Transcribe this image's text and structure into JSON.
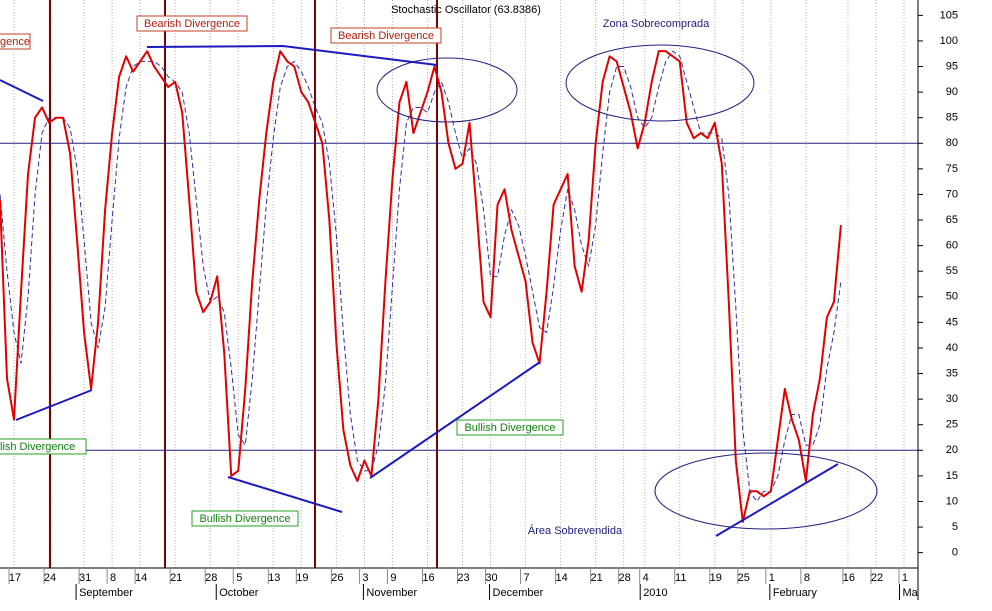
{
  "chart_data": {
    "type": "line",
    "title": "Stochastic Oscillator (63.8386)",
    "xlim": [
      0,
      131
    ],
    "ylim": [
      -3,
      108
    ],
    "yticks": [
      0,
      5,
      10,
      15,
      20,
      25,
      30,
      35,
      40,
      45,
      50,
      55,
      60,
      65,
      70,
      75,
      80,
      85,
      90,
      95,
      100,
      105
    ],
    "xticks": [
      {
        "value": 2,
        "label": "17"
      },
      {
        "value": 7,
        "label": "24"
      },
      {
        "value": 12,
        "label": "31"
      },
      {
        "value": 16,
        "label": "8"
      },
      {
        "value": 20,
        "label": "14"
      },
      {
        "value": 25,
        "label": "21"
      },
      {
        "value": 30,
        "label": "28"
      },
      {
        "value": 34,
        "label": "5"
      },
      {
        "value": 39,
        "label": "13"
      },
      {
        "value": 43,
        "label": "19"
      },
      {
        "value": 48,
        "label": "26"
      },
      {
        "value": 52,
        "label": "3"
      },
      {
        "value": 56,
        "label": "9"
      },
      {
        "value": 61,
        "label": "16"
      },
      {
        "value": 66,
        "label": "23"
      },
      {
        "value": 70,
        "label": "30"
      },
      {
        "value": 75,
        "label": "7"
      },
      {
        "value": 80,
        "label": "14"
      },
      {
        "value": 85,
        "label": "21"
      },
      {
        "value": 89,
        "label": "28"
      },
      {
        "value": 92,
        "label": "4"
      },
      {
        "value": 97,
        "label": "11"
      },
      {
        "value": 102,
        "label": "19"
      },
      {
        "value": 106,
        "label": "25"
      },
      {
        "value": 110,
        "label": "1"
      },
      {
        "value": 115,
        "label": "8"
      },
      {
        "value": 121,
        "label": "16"
      },
      {
        "value": 125,
        "label": "22"
      },
      {
        "value": 129,
        "label": "1"
      }
    ],
    "month_ticks": [
      {
        "value": 11,
        "label": "September"
      },
      {
        "value": 31,
        "label": "October"
      },
      {
        "value": 52,
        "label": "November"
      },
      {
        "value": 70,
        "label": "December"
      },
      {
        "value": 91.5,
        "label": "2010"
      },
      {
        "value": 110,
        "label": "February"
      },
      {
        "value": 128.5,
        "label": "Ma"
      }
    ],
    "grid": true,
    "levels": [
      80,
      20
    ],
    "series": [
      {
        "color": "#e00000",
        "dash": false,
        "values": [
          69,
          34,
          26,
          51,
          74,
          85,
          87,
          84,
          85,
          85,
          78,
          61,
          43,
          32,
          45,
          67,
          82,
          93,
          97,
          94,
          96,
          98,
          95,
          93,
          91,
          92,
          86,
          69,
          51,
          47,
          49,
          54,
          39,
          15,
          16,
          32,
          53,
          69,
          82,
          92,
          98,
          96,
          95,
          90,
          88,
          84,
          80,
          65,
          41,
          24,
          17,
          14,
          18,
          15,
          30,
          53,
          73,
          88,
          92,
          82,
          86,
          90,
          95,
          90,
          80,
          75,
          76,
          84,
          67,
          49,
          46,
          68,
          71,
          63,
          58,
          53,
          41,
          37,
          51,
          68,
          71,
          74,
          56,
          51,
          61,
          80,
          92,
          97,
          96,
          91,
          86,
          79,
          84,
          92,
          98,
          98,
          97,
          96,
          84,
          81,
          82,
          81,
          84,
          76,
          49,
          18,
          6,
          12,
          12,
          11,
          12,
          22,
          32,
          26,
          22,
          14,
          27,
          34,
          46,
          49,
          64
        ]
      },
      {
        "color": "#3030a0",
        "dash": true,
        "values": [
          70,
          55,
          43,
          37,
          50,
          70,
          82,
          85,
          85,
          85,
          83,
          75,
          61,
          45,
          40,
          48,
          65,
          81,
          91,
          95,
          96,
          96,
          96,
          95,
          93,
          92,
          90,
          82,
          69,
          56,
          49,
          50,
          47,
          36,
          23,
          21,
          34,
          51,
          68,
          81,
          91,
          95,
          96,
          94,
          91,
          87,
          84,
          76,
          62,
          43,
          27,
          18,
          16,
          16,
          21,
          33,
          52,
          71,
          84,
          87,
          87,
          86,
          90,
          92,
          88,
          82,
          77,
          79,
          76,
          67,
          54,
          54,
          62,
          67,
          64,
          58,
          51,
          44,
          43,
          52,
          63,
          71,
          67,
          60,
          56,
          64,
          78,
          90,
          95,
          95,
          91,
          85,
          83,
          85,
          91,
          96,
          98,
          97,
          92,
          87,
          82,
          82,
          82,
          81,
          70,
          48,
          24,
          12,
          10,
          12,
          12,
          15,
          22,
          27,
          27,
          21,
          21,
          25,
          36,
          43,
          53
        ]
      }
    ],
    "annotations": {
      "bearish_1": "Bearish Divergence",
      "bearish_2": "Bearish Divergence",
      "bearish_clip": "gence",
      "bullish_1": "Bullish Divergence",
      "bullish_2": "Bullish Divergence",
      "bullish_clip": "lish Divergence",
      "overbought": "Zona Sobrecomprada",
      "oversold": "Área Sobrevendida"
    }
  }
}
